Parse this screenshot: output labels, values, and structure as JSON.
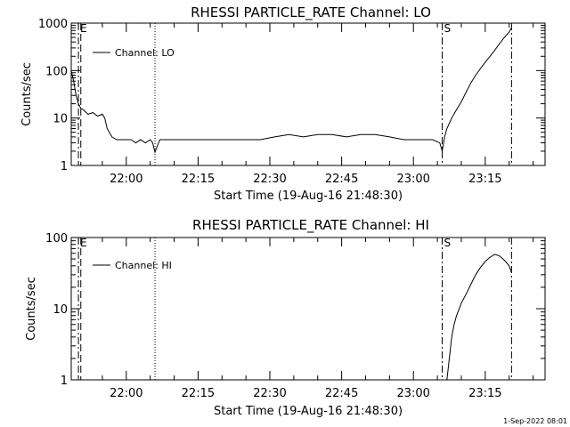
{
  "chart_data": [
    {
      "type": "line",
      "title": "RHESSI PARTICLE_RATE Channel: LO",
      "xlabel": "Start Time (19-Aug-16 21:48:30)",
      "ylabel": "Counts/sec",
      "y_scale": "log",
      "ylim": [
        1,
        1000
      ],
      "yticks": [
        1,
        10,
        100,
        1000
      ],
      "ytick_labels": [
        "1",
        "10",
        "100",
        "1000"
      ],
      "xlim": [
        "21:48:30",
        "23:27:30"
      ],
      "xticks": [
        "22:00",
        "22:15",
        "22:30",
        "22:45",
        "23:00",
        "23:15"
      ],
      "legend": {
        "label": "Channel: LO",
        "position": "top-left"
      },
      "markers": [
        {
          "time": "21:50:00",
          "style": "dash-dot",
          "label": "E"
        },
        {
          "time": "21:50:30",
          "style": "dashed",
          "label": ""
        },
        {
          "time": "22:06:00",
          "style": "dotted",
          "label": ""
        },
        {
          "time": "23:06:00",
          "style": "dash-dot",
          "label": "S"
        },
        {
          "time": "23:20:30",
          "style": "dash-dot",
          "label": ""
        }
      ],
      "series": [
        {
          "name": "Channel: LO",
          "x": [
            "21:48:30",
            "21:49:00",
            "21:49:30",
            "21:50:00",
            "21:50:30",
            "21:51:00",
            "21:52:00",
            "21:53:00",
            "21:54:00",
            "21:55:00",
            "21:55:30",
            "21:56:00",
            "21:57:00",
            "21:58:00",
            "21:59:00",
            "22:00:00",
            "22:01:00",
            "22:02:00",
            "22:03:00",
            "22:04:00",
            "22:05:00",
            "22:05:30",
            "22:06:00",
            "22:07:00",
            "22:10:00",
            "22:13:00",
            "22:16:00",
            "22:19:00",
            "22:22:00",
            "22:25:00",
            "22:28:00",
            "22:31:00",
            "22:34:00",
            "22:37:00",
            "22:40:00",
            "22:43:00",
            "22:46:00",
            "22:49:00",
            "22:52:00",
            "22:55:00",
            "22:58:00",
            "23:01:00",
            "23:04:00",
            "23:05:30",
            "23:06:00",
            "23:06:30",
            "23:07:00",
            "23:08:00",
            "23:09:00",
            "23:10:00",
            "23:11:00",
            "23:12:00",
            "23:13:00",
            "23:14:00",
            "23:15:00",
            "23:16:00",
            "23:17:00",
            "23:18:00",
            "23:19:00",
            "23:20:00",
            "23:20:30"
          ],
          "values": [
            100,
            60,
            30,
            20,
            16,
            15,
            12,
            13,
            11,
            12,
            10,
            6,
            4,
            3.5,
            3.5,
            3.5,
            3.5,
            3,
            3.5,
            3,
            3.5,
            3,
            1.9,
            3.5,
            3.5,
            3.5,
            3.5,
            3.5,
            3.5,
            3.5,
            3.5,
            4,
            4.5,
            4,
            4.5,
            4.5,
            4,
            4.5,
            4.5,
            4,
            3.5,
            3.5,
            3.5,
            3.0,
            2.0,
            4,
            6,
            10,
            15,
            22,
            35,
            55,
            80,
            110,
            150,
            200,
            270,
            370,
            500,
            650,
            800
          ]
        }
      ]
    },
    {
      "type": "line",
      "title": "RHESSI PARTICLE_RATE Channel: HI",
      "xlabel": "Start Time (19-Aug-16 21:48:30)",
      "ylabel": "Counts/sec",
      "y_scale": "log",
      "ylim": [
        1,
        100
      ],
      "yticks": [
        1,
        10,
        100
      ],
      "ytick_labels": [
        "1",
        "10",
        "100"
      ],
      "xlim": [
        "21:48:30",
        "23:27:30"
      ],
      "xticks": [
        "22:00",
        "22:15",
        "22:30",
        "22:45",
        "23:00",
        "23:15"
      ],
      "legend": {
        "label": "Channel: HI",
        "position": "top-left"
      },
      "markers": [
        {
          "time": "21:50:00",
          "style": "dash-dot",
          "label": "E"
        },
        {
          "time": "21:50:30",
          "style": "dashed",
          "label": ""
        },
        {
          "time": "22:06:00",
          "style": "dotted",
          "label": ""
        },
        {
          "time": "23:06:00",
          "style": "dash-dot",
          "label": "S"
        },
        {
          "time": "23:20:30",
          "style": "dash-dot",
          "label": ""
        }
      ],
      "series": [
        {
          "name": "Channel: HI",
          "x": [
            "23:07:00",
            "23:07:30",
            "23:08:00",
            "23:08:30",
            "23:09:00",
            "23:10:00",
            "23:11:00",
            "23:12:00",
            "23:13:00",
            "23:14:00",
            "23:15:00",
            "23:16:00",
            "23:17:00",
            "23:18:00",
            "23:19:00",
            "23:20:00",
            "23:20:30"
          ],
          "values": [
            1,
            2,
            4,
            6,
            8,
            12,
            16,
            22,
            30,
            38,
            46,
            53,
            58,
            55,
            48,
            40,
            32
          ]
        }
      ]
    }
  ],
  "footer": {
    "timestamp": "1-Sep-2022 08:01"
  }
}
